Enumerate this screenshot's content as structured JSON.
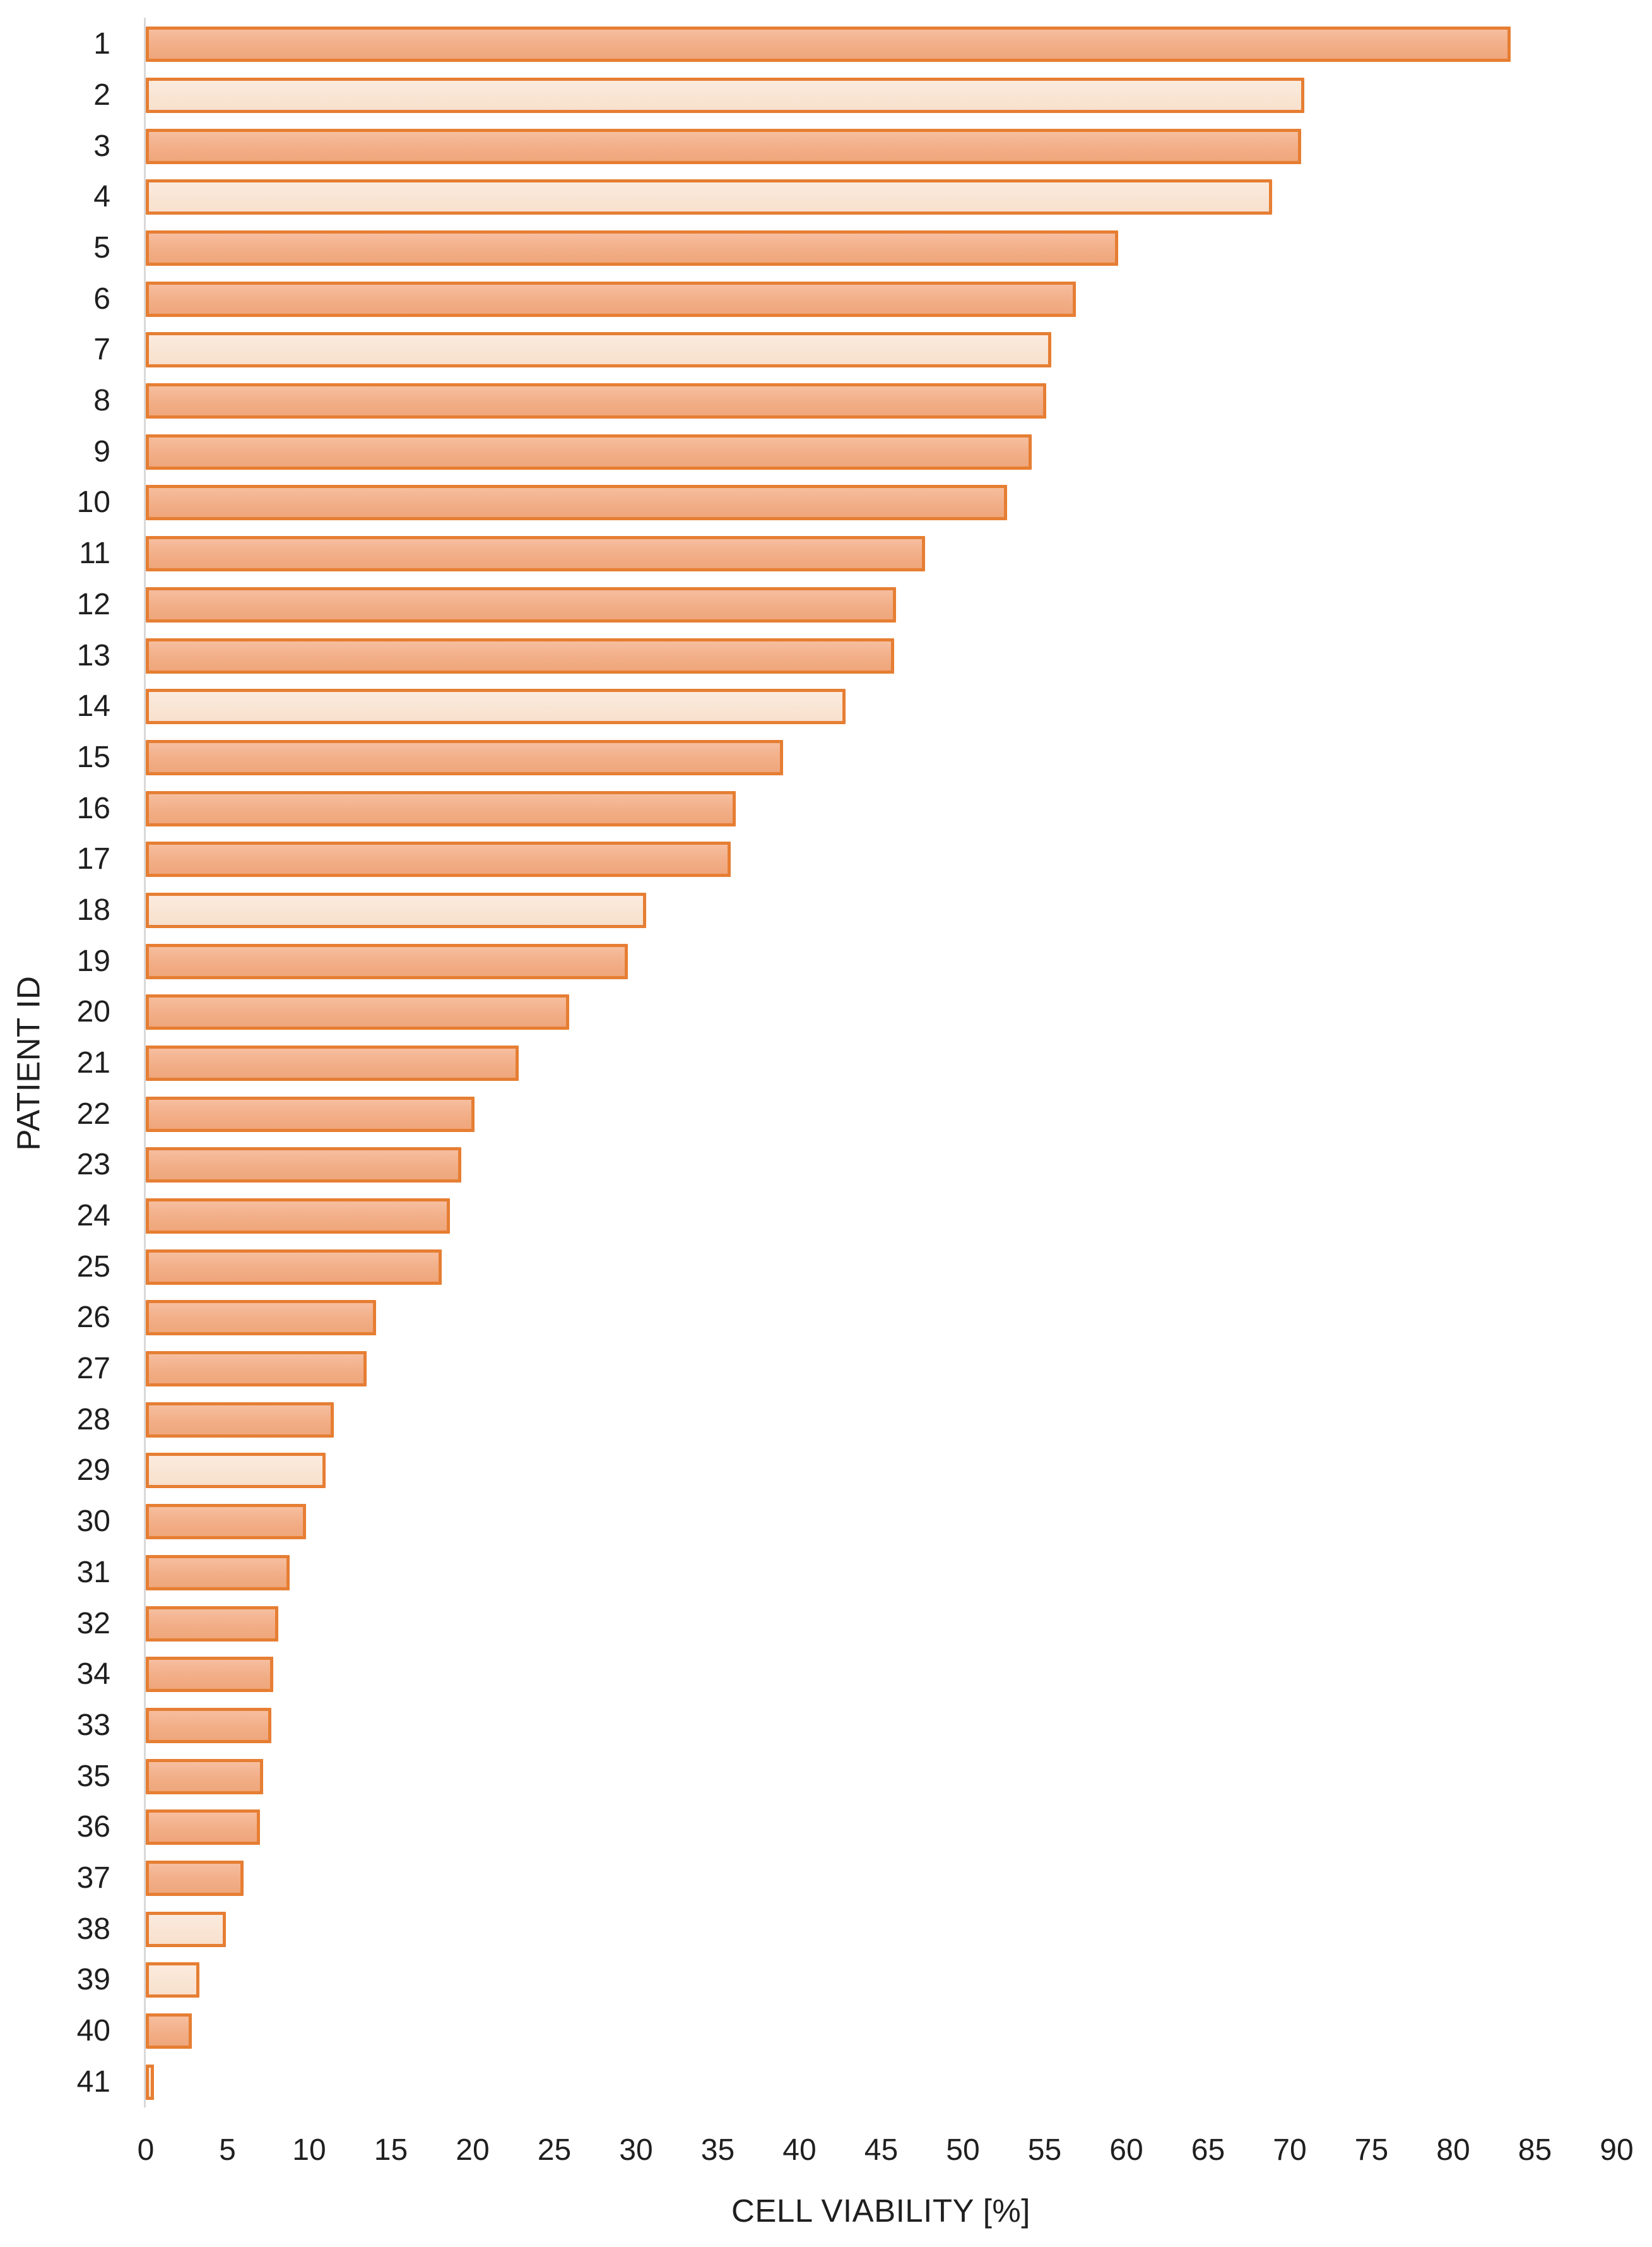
{
  "chart_data": {
    "type": "bar",
    "orientation": "horizontal",
    "title": "",
    "xlabel": "CELL VIABILITY [%]",
    "ylabel": "PATIENT ID",
    "xlim": [
      0,
      90
    ],
    "xticks": [
      0,
      5,
      10,
      15,
      20,
      25,
      30,
      35,
      40,
      45,
      50,
      55,
      60,
      65,
      70,
      75,
      80,
      85,
      90
    ],
    "grid": false,
    "legend_position": "none",
    "categories": [
      "1",
      "2",
      "3",
      "4",
      "5",
      "6",
      "7",
      "8",
      "9",
      "10",
      "11",
      "12",
      "13",
      "14",
      "15",
      "16",
      "17",
      "18",
      "19",
      "20",
      "21",
      "22",
      "23",
      "24",
      "25",
      "26",
      "27",
      "28",
      "29",
      "30",
      "31",
      "32",
      "34",
      "33",
      "35",
      "36",
      "37",
      "38",
      "39",
      "40",
      "41"
    ],
    "series": [
      {
        "name": "Cell viability [%]",
        "values": [
          83.5,
          70.9,
          70.7,
          68.9,
          59.5,
          56.9,
          55.4,
          55.1,
          54.2,
          52.7,
          47.7,
          45.9,
          45.8,
          42.8,
          39.0,
          36.1,
          35.8,
          30.6,
          29.5,
          25.9,
          22.8,
          20.1,
          19.3,
          18.6,
          18.1,
          14.1,
          13.5,
          11.5,
          11.0,
          9.8,
          8.8,
          8.1,
          7.8,
          7.7,
          7.2,
          7.0,
          6.0,
          4.9,
          3.3,
          2.8,
          0.5
        ]
      }
    ],
    "bar_shades": [
      "dark",
      "light",
      "dark",
      "light",
      "dark",
      "dark",
      "light",
      "dark",
      "dark",
      "dark",
      "dark",
      "dark",
      "dark",
      "light",
      "dark",
      "dark",
      "dark",
      "light",
      "dark",
      "dark",
      "dark",
      "dark",
      "dark",
      "dark",
      "dark",
      "dark",
      "dark",
      "dark",
      "light",
      "dark",
      "dark",
      "dark",
      "dark",
      "dark",
      "dark",
      "dark",
      "dark",
      "light",
      "light",
      "dark",
      "light"
    ],
    "colors": {
      "bar_border": "#e67e33",
      "bar_fill_dark": "#f2ae87",
      "bar_fill_light": "#f9e4d3",
      "axis_line": "#d9d9d9",
      "text": "#1f1f1f",
      "background": "#ffffff"
    }
  }
}
